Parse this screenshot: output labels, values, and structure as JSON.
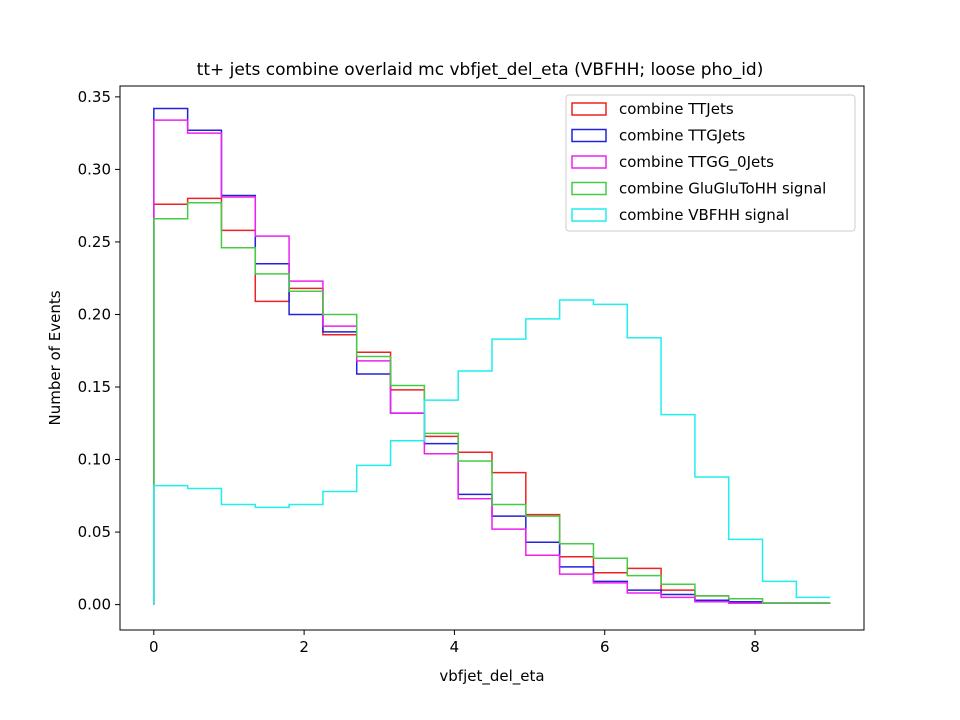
{
  "chart_data": {
    "type": "step",
    "title": "tt+ jets combine overlaid mc vbfjet_del_eta (VBFHH; loose pho_id)",
    "xlabel": "vbfjet_del_eta",
    "ylabel": "Number of Events",
    "xlim": [
      -0.45,
      9.45
    ],
    "ylim": [
      -0.0175,
      0.3575
    ],
    "xticks": [
      "0",
      "2",
      "4",
      "6",
      "8"
    ],
    "yticks": [
      "0.00",
      "0.05",
      "0.10",
      "0.15",
      "0.20",
      "0.25",
      "0.30",
      "0.35"
    ],
    "grid": false,
    "legend_position": "top-right",
    "bin_edges": [
      0,
      0.45,
      0.9,
      1.35,
      1.8,
      2.25,
      2.7,
      3.15,
      3.6,
      4.05,
      4.5,
      4.95,
      5.4,
      5.85,
      6.3,
      6.75,
      7.2,
      7.65,
      8.1,
      8.55,
      9.0
    ],
    "series": [
      {
        "name": "combine TTJets",
        "color": "#ee2222",
        "values": [
          0.276,
          0.28,
          0.258,
          0.209,
          0.218,
          0.186,
          0.174,
          0.148,
          0.116,
          0.105,
          0.091,
          0.062,
          0.033,
          0.022,
          0.025,
          0.01,
          0.006,
          0.001,
          0.001,
          0.001
        ]
      },
      {
        "name": "combine TTGJets",
        "color": "#2222dd",
        "values": [
          0.342,
          0.327,
          0.282,
          0.235,
          0.2,
          0.188,
          0.159,
          0.132,
          0.111,
          0.076,
          0.061,
          0.043,
          0.026,
          0.016,
          0.01,
          0.007,
          0.003,
          0.002,
          0.001,
          0.001
        ]
      },
      {
        "name": "combine TTGG_0Jets",
        "color": "#ee22ee",
        "values": [
          0.334,
          0.325,
          0.281,
          0.254,
          0.223,
          0.192,
          0.168,
          0.132,
          0.104,
          0.073,
          0.052,
          0.034,
          0.021,
          0.015,
          0.008,
          0.005,
          0.002,
          0.001,
          0.001,
          0.001
        ]
      },
      {
        "name": "combine GluGluToHH signal",
        "color": "#44cc44",
        "values": [
          0.266,
          0.277,
          0.246,
          0.228,
          0.216,
          0.2,
          0.171,
          0.151,
          0.118,
          0.099,
          0.069,
          0.061,
          0.042,
          0.032,
          0.02,
          0.014,
          0.006,
          0.004,
          0.001,
          0.001
        ]
      },
      {
        "name": "combine VBFHH signal",
        "color": "#22eeee",
        "values": [
          0.082,
          0.08,
          0.069,
          0.067,
          0.069,
          0.078,
          0.096,
          0.113,
          0.141,
          0.161,
          0.183,
          0.197,
          0.21,
          0.207,
          0.184,
          0.131,
          0.088,
          0.045,
          0.016,
          0.005
        ]
      }
    ]
  }
}
